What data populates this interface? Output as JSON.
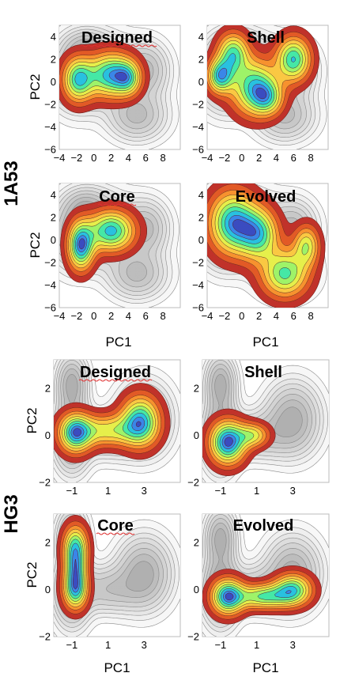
{
  "chart_data": {
    "type": "contour",
    "colormap": [
      "#30123b",
      "#4662d7",
      "#36aaf9",
      "#1ae4b6",
      "#72fe5e",
      "#c8ef34",
      "#faba39",
      "#f66b19",
      "#ca2a04",
      "#7a0403"
    ],
    "groups": [
      {
        "label": "1A53",
        "xlabel": "PC1",
        "ylabel": "PC2",
        "xticks": [
          -4,
          -2,
          0,
          2,
          4,
          6,
          8
        ],
        "yticks": [
          -6,
          -4,
          -2,
          0,
          2,
          4
        ],
        "xlim": [
          -4,
          10
        ],
        "ylim": [
          -6,
          5
        ],
        "background_peaks": [
          [
            -2,
            0.5,
            1.8,
            1.8,
            1.0
          ],
          [
            1,
            1,
            2.2,
            1.8,
            0.9
          ],
          [
            6,
            1,
            1.6,
            1.5,
            0.8
          ],
          [
            5,
            -3,
            2,
            1.3,
            0.8
          ],
          [
            -1,
            3,
            1.5,
            1.0,
            0.5
          ]
        ],
        "panels": [
          {
            "title": "Designed",
            "peaks": [
              [
                -1.8,
                0.2,
                1.2,
                1.3,
                1.0
              ],
              [
                2,
                0.6,
                1.8,
                1.3,
                1.1
              ],
              [
                4,
                0.3,
                1.0,
                1.0,
                0.6
              ]
            ]
          },
          {
            "title": "Shell",
            "peaks": [
              [
                -2.5,
                0.5,
                1.0,
                1.0,
                0.9
              ],
              [
                -1,
                2.5,
                1.2,
                1.2,
                0.8
              ],
              [
                1.5,
                -0.5,
                1.8,
                1.6,
                0.9
              ],
              [
                6,
                2,
                1.3,
                1.3,
                0.9
              ],
              [
                3,
                -1.5,
                1.2,
                1.0,
                0.5
              ]
            ]
          },
          {
            "title": "Core",
            "peaks": [
              [
                -1.5,
                -0.5,
                1.0,
                1.4,
                1.0
              ],
              [
                2,
                0.8,
                1.8,
                1.2,
                0.9
              ]
            ]
          },
          {
            "title": "Evolved",
            "peaks": [
              [
                -1,
                1.5,
                1.8,
                1.8,
                1.0
              ],
              [
                2,
                0.5,
                1.5,
                1.5,
                0.8
              ],
              [
                5,
                -3,
                1.8,
                1.4,
                0.8
              ],
              [
                7.5,
                -0.5,
                1.0,
                1.2,
                0.6
              ]
            ]
          }
        ]
      },
      {
        "label": "HG3",
        "xlabel": "PC1",
        "ylabel": "PC2",
        "xticks": [
          -1,
          1,
          3
        ],
        "yticks": [
          -2,
          0,
          2
        ],
        "xlim": [
          -2,
          5
        ],
        "ylim": [
          -2,
          3.2
        ],
        "background_peaks": [
          [
            -1,
            0,
            0.6,
            0.9,
            1.0
          ],
          [
            -1,
            2.2,
            0.5,
            0.7,
            0.8
          ],
          [
            3,
            0.7,
            0.9,
            0.9,
            0.8
          ],
          [
            1,
            0,
            1.2,
            0.6,
            0.5
          ]
        ],
        "panels": [
          {
            "title": "Designed",
            "peaks": [
              [
                -0.8,
                0.1,
                0.6,
                0.55,
                1.0
              ],
              [
                2.8,
                0.6,
                0.7,
                0.7,
                1.0
              ],
              [
                1,
                0.2,
                1.2,
                0.45,
                0.6
              ]
            ]
          },
          {
            "title": "Shell",
            "peaks": [
              [
                -0.6,
                -0.3,
                0.65,
                0.6,
                1.0
              ],
              [
                0.8,
                0.0,
                0.6,
                0.35,
                0.5
              ]
            ]
          },
          {
            "title": "Core",
            "peaks": [
              [
                -0.8,
                0.0,
                0.45,
                0.55,
                1.0
              ],
              [
                -0.8,
                1.8,
                0.45,
                0.6,
                0.9
              ],
              [
                -0.8,
                0.9,
                0.4,
                0.5,
                0.6
              ]
            ]
          },
          {
            "title": "Evolved",
            "peaks": [
              [
                -0.6,
                -0.3,
                0.6,
                0.5,
                1.0
              ],
              [
                1.4,
                -0.3,
                1.0,
                0.35,
                0.75
              ],
              [
                3,
                0.0,
                0.7,
                0.45,
                0.8
              ]
            ]
          }
        ]
      }
    ]
  }
}
